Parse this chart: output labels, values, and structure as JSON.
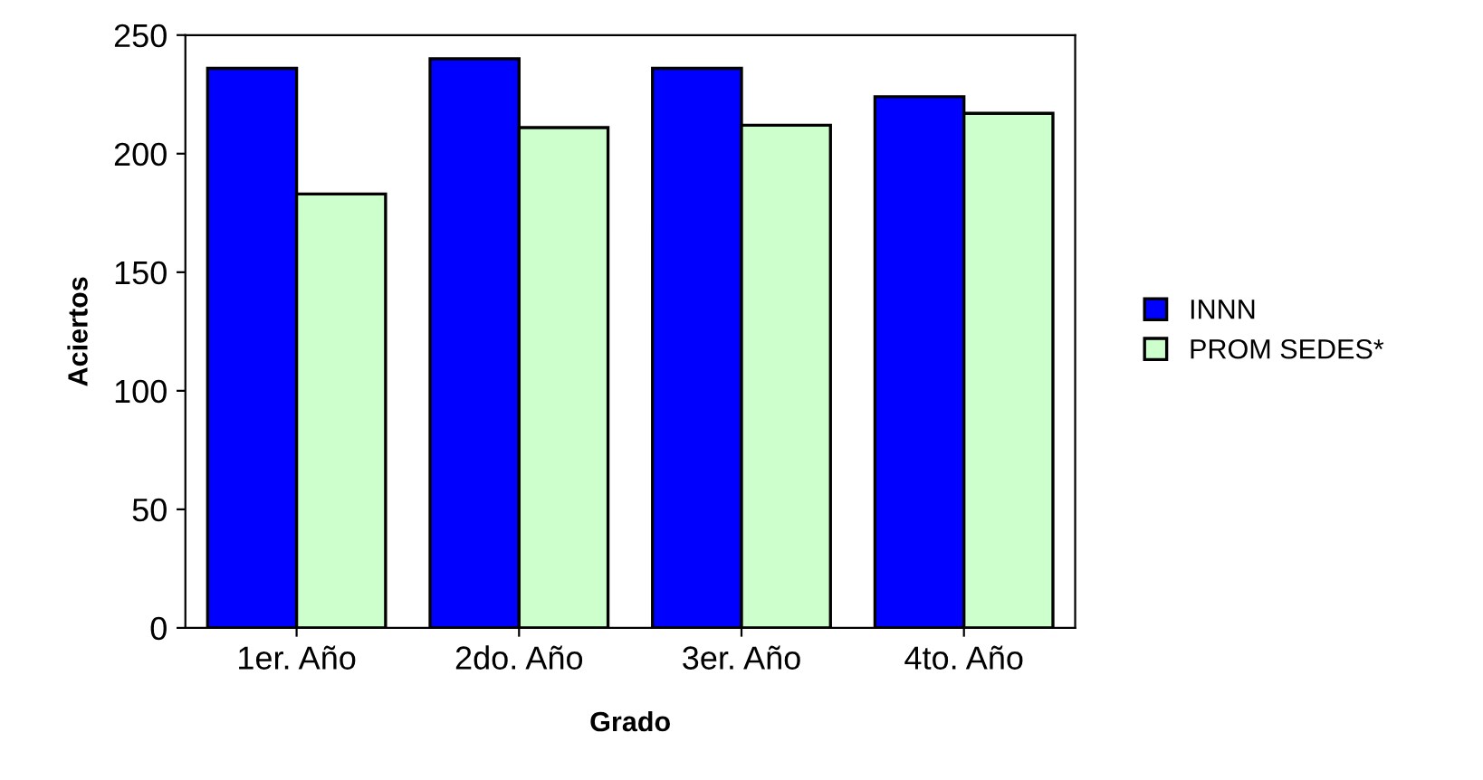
{
  "chart_data": {
    "type": "bar",
    "xlabel": "Grado",
    "ylabel": "Aciertos",
    "categories": [
      "1er. Año",
      "2do. Año",
      "3er. Año",
      "4to. Año"
    ],
    "series": [
      {
        "name": "INNN",
        "color": "#0000ff",
        "values": [
          236,
          240,
          236,
          224
        ]
      },
      {
        "name": "PROM SEDES*",
        "color": "#ccffcc",
        "values": [
          183,
          211,
          212,
          217
        ]
      }
    ],
    "ylim": [
      0,
      250
    ],
    "yticks": [
      0,
      50,
      100,
      150,
      200,
      250
    ],
    "grid": false,
    "legend": "right"
  }
}
